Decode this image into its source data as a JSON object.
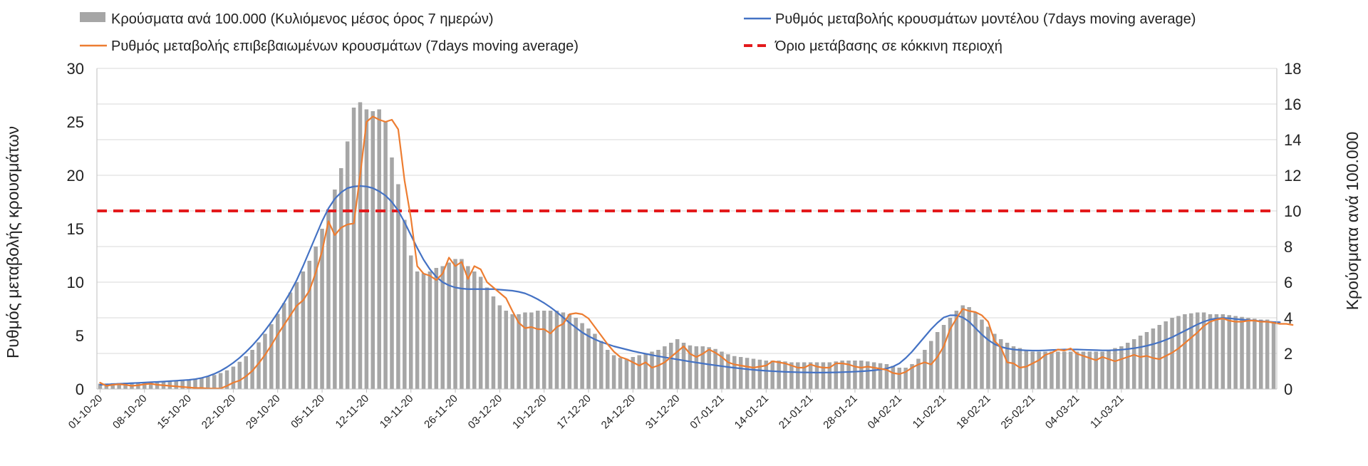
{
  "chart_data": {
    "type": "bar+line",
    "title": "",
    "ylabel_left": "Ρυθμός μεταβολής κρουσμάτων",
    "ylabel_right": "Κρούσματα ανά 100.000",
    "ylim_left": [
      0,
      30
    ],
    "ylim_right": [
      0,
      18
    ],
    "yticks_left": [
      "0",
      "5",
      "10",
      "15",
      "20",
      "25",
      "30"
    ],
    "yticks_right": [
      "0",
      "2",
      "4",
      "6",
      "8",
      "10",
      "12",
      "14",
      "16",
      "18"
    ],
    "x_tick_labels": [
      "01-10-20",
      "08-10-20",
      "15-10-20",
      "22-10-20",
      "29-10-20",
      "05-11-20",
      "12-11-20",
      "19-11-20",
      "26-11-20",
      "03-12-20",
      "10-12-20",
      "17-12-20",
      "24-12-20",
      "31-12-20",
      "07-01-21",
      "14-01-21",
      "21-01-21",
      "28-01-21",
      "04-02-21",
      "11-02-21",
      "18-02-21",
      "25-02-21",
      "04-03-21",
      "11-03-21"
    ],
    "grid": true,
    "legend_position": "top",
    "colors": {
      "bars": "#a6a6a6",
      "model": "#4472c4",
      "confirmed": "#ed7d31",
      "threshold": "#e31a1c"
    },
    "series": [
      {
        "name": "Κρούσματα ανά 100.000 (Κυλιόμενος μέσος όρος 7 ημερών)",
        "type": "bar",
        "axis": "right",
        "values": [
          0.3,
          0.31,
          0.33,
          0.34,
          0.36,
          0.37,
          0.38,
          0.4,
          0.41,
          0.43,
          0.44,
          0.45,
          0.47,
          0.48,
          0.5,
          0.55,
          0.62,
          0.7,
          0.79,
          0.9,
          1.05,
          1.26,
          1.53,
          1.84,
          2.2,
          2.62,
          3.1,
          3.64,
          4.22,
          4.82,
          5.42,
          6.0,
          6.6,
          7.2,
          8.0,
          9.0,
          10.0,
          11.2,
          12.4,
          13.9,
          15.8,
          16.1,
          15.7,
          15.6,
          15.7,
          15.0,
          13.0,
          11.5,
          9.5,
          7.5,
          6.6,
          6.5,
          6.6,
          6.8,
          6.9,
          7.1,
          7.3,
          7.3,
          6.9,
          6.6,
          6.3,
          5.7,
          5.2,
          4.7,
          4.4,
          4.2,
          4.2,
          4.3,
          4.3,
          4.4,
          4.4,
          4.4,
          4.4,
          4.3,
          4.2,
          4.0,
          3.7,
          3.4,
          3.1,
          2.7,
          2.2,
          1.9,
          1.75,
          1.7,
          1.8,
          1.9,
          2.0,
          2.1,
          2.2,
          2.4,
          2.6,
          2.8,
          2.6,
          2.45,
          2.4,
          2.4,
          2.35,
          2.25,
          2.1,
          1.95,
          1.85,
          1.8,
          1.75,
          1.7,
          1.65,
          1.6,
          1.6,
          1.6,
          1.55,
          1.5,
          1.5,
          1.5,
          1.5,
          1.5,
          1.5,
          1.5,
          1.55,
          1.6,
          1.6,
          1.6,
          1.6,
          1.55,
          1.5,
          1.45,
          1.4,
          1.3,
          1.2,
          1.2,
          1.4,
          1.7,
          2.2,
          2.7,
          3.2,
          3.6,
          4.0,
          4.4,
          4.7,
          4.6,
          4.3,
          3.9,
          3.5,
          3.1,
          2.8,
          2.6,
          2.4,
          2.3,
          2.2,
          2.1,
          2.1,
          2.1,
          2.1,
          2.1,
          2.1,
          2.1,
          2.1,
          2.1,
          2.1,
          2.1,
          2.1,
          2.2,
          2.3,
          2.4,
          2.6,
          2.8,
          3.0,
          3.2,
          3.4,
          3.6,
          3.8,
          4.0,
          4.1,
          4.2,
          4.25,
          4.3,
          4.3,
          4.2,
          4.2,
          4.2,
          4.15,
          4.1,
          4.05,
          4.0,
          3.95,
          3.9,
          3.9,
          3.8
        ]
      },
      {
        "name": "Ρυθμός μεταβολής κρουσμάτων μοντέλου (7days moving average)",
        "type": "line",
        "axis": "left",
        "values": [
          0.4,
          0.43,
          0.46,
          0.49,
          0.52,
          0.55,
          0.58,
          0.61,
          0.64,
          0.67,
          0.7,
          0.74,
          0.78,
          0.82,
          0.86,
          0.93,
          1.04,
          1.2,
          1.42,
          1.7,
          2.05,
          2.46,
          2.93,
          3.47,
          4.07,
          4.74,
          5.47,
          6.27,
          7.14,
          8.07,
          9.07,
          10.2,
          11.5,
          12.9,
          14.3,
          15.7,
          16.9,
          17.8,
          18.4,
          18.8,
          18.95,
          19.0,
          18.95,
          18.8,
          18.5,
          18.1,
          17.5,
          16.7,
          15.6,
          14.4,
          13.2,
          12.1,
          11.2,
          10.5,
          10.0,
          9.7,
          9.5,
          9.4,
          9.35,
          9.35,
          9.35,
          9.35,
          9.35,
          9.3,
          9.25,
          9.2,
          9.1,
          8.95,
          8.7,
          8.4,
          8.05,
          7.65,
          7.2,
          6.7,
          6.2,
          5.75,
          5.3,
          4.95,
          4.65,
          4.4,
          4.2,
          4.0,
          3.85,
          3.7,
          3.55,
          3.42,
          3.3,
          3.18,
          3.07,
          2.97,
          2.87,
          2.77,
          2.67,
          2.57,
          2.48,
          2.39,
          2.3,
          2.22,
          2.14,
          2.06,
          1.99,
          1.92,
          1.86,
          1.8,
          1.75,
          1.71,
          1.67,
          1.64,
          1.61,
          1.59,
          1.57,
          1.56,
          1.55,
          1.54,
          1.54,
          1.55,
          1.56,
          1.58,
          1.6,
          1.63,
          1.66,
          1.7,
          1.75,
          1.82,
          1.92,
          2.1,
          2.4,
          2.9,
          3.5,
          4.2,
          4.9,
          5.6,
          6.2,
          6.7,
          6.9,
          6.9,
          6.7,
          6.3,
          5.7,
          5.1,
          4.6,
          4.2,
          3.95,
          3.8,
          3.7,
          3.65,
          3.62,
          3.6,
          3.6,
          3.62,
          3.65,
          3.68,
          3.7,
          3.7,
          3.7,
          3.68,
          3.66,
          3.64,
          3.62,
          3.62,
          3.64,
          3.68,
          3.74,
          3.82,
          3.92,
          4.05,
          4.2,
          4.38,
          4.6,
          4.85,
          5.15,
          5.45,
          5.75,
          6.05,
          6.3,
          6.5,
          6.6,
          6.65,
          6.62,
          6.55,
          6.5,
          6.45,
          6.4,
          6.35,
          6.3,
          6.27,
          6.25
        ]
      },
      {
        "name": "Ρυθμός μεταβολής επιβεβαιωμένων κρουσμάτων (7days moving average)",
        "type": "line",
        "axis": "left",
        "values": [
          0.6,
          0.3,
          0.4,
          0.45,
          0.4,
          0.3,
          0.35,
          0.45,
          0.5,
          0.4,
          0.35,
          0.3,
          0.25,
          0.2,
          0.15,
          0.1,
          0.1,
          0.05,
          0.05,
          0.05,
          0.3,
          0.6,
          0.8,
          1.2,
          1.7,
          2.4,
          3.2,
          4.1,
          5.1,
          6.0,
          6.9,
          7.8,
          8.3,
          9.2,
          10.9,
          12.9,
          15.7,
          14.4,
          15.1,
          15.4,
          15.5,
          20.0,
          25.0,
          25.5,
          25.2,
          25.0,
          25.2,
          24.3,
          19.5,
          16.0,
          11.5,
          10.8,
          10.6,
          10.2,
          10.8,
          12.3,
          11.5,
          11.9,
          10.3,
          11.5,
          11.2,
          10.0,
          9.5,
          9.0,
          8.5,
          7.3,
          6.2,
          5.7,
          5.8,
          5.6,
          5.6,
          5.2,
          5.8,
          6.1,
          7.0,
          7.1,
          7.0,
          6.6,
          5.8,
          5.0,
          4.2,
          3.5,
          3.0,
          2.8,
          2.5,
          2.2,
          2.5,
          2.0,
          2.2,
          2.5,
          3.0,
          3.5,
          4.0,
          3.3,
          3.0,
          3.3,
          3.7,
          3.4,
          3.0,
          2.5,
          2.3,
          2.2,
          2.1,
          2.0,
          2.1,
          2.2,
          2.6,
          2.5,
          2.4,
          2.2,
          2.0,
          2.0,
          2.3,
          2.1,
          2.0,
          2.0,
          2.4,
          2.4,
          2.3,
          2.1,
          2.0,
          2.1,
          2.0,
          1.9,
          1.8,
          1.5,
          1.4,
          1.6,
          2.0,
          2.3,
          2.5,
          2.3,
          3.0,
          4.0,
          5.6,
          6.6,
          7.5,
          7.3,
          7.2,
          6.9,
          6.3,
          4.5,
          3.9,
          2.5,
          2.4,
          2.0,
          2.1,
          2.4,
          2.7,
          3.2,
          3.4,
          3.7,
          3.6,
          3.8,
          3.3,
          3.1,
          2.9,
          2.7,
          3.0,
          2.8,
          2.6,
          2.8,
          3.0,
          3.2,
          3.0,
          3.1,
          2.9,
          2.8,
          3.1,
          3.4,
          3.8,
          4.3,
          4.8,
          5.3,
          5.9,
          6.3,
          6.5,
          6.6,
          6.4,
          6.3,
          6.3,
          6.4,
          6.4,
          6.3,
          6.3,
          6.2,
          6.1,
          6.1,
          6.0
        ]
      },
      {
        "name": "Όριο μετάβασης σε κόκκινη περιοχή",
        "type": "hline",
        "axis": "right",
        "value": 10
      }
    ]
  }
}
